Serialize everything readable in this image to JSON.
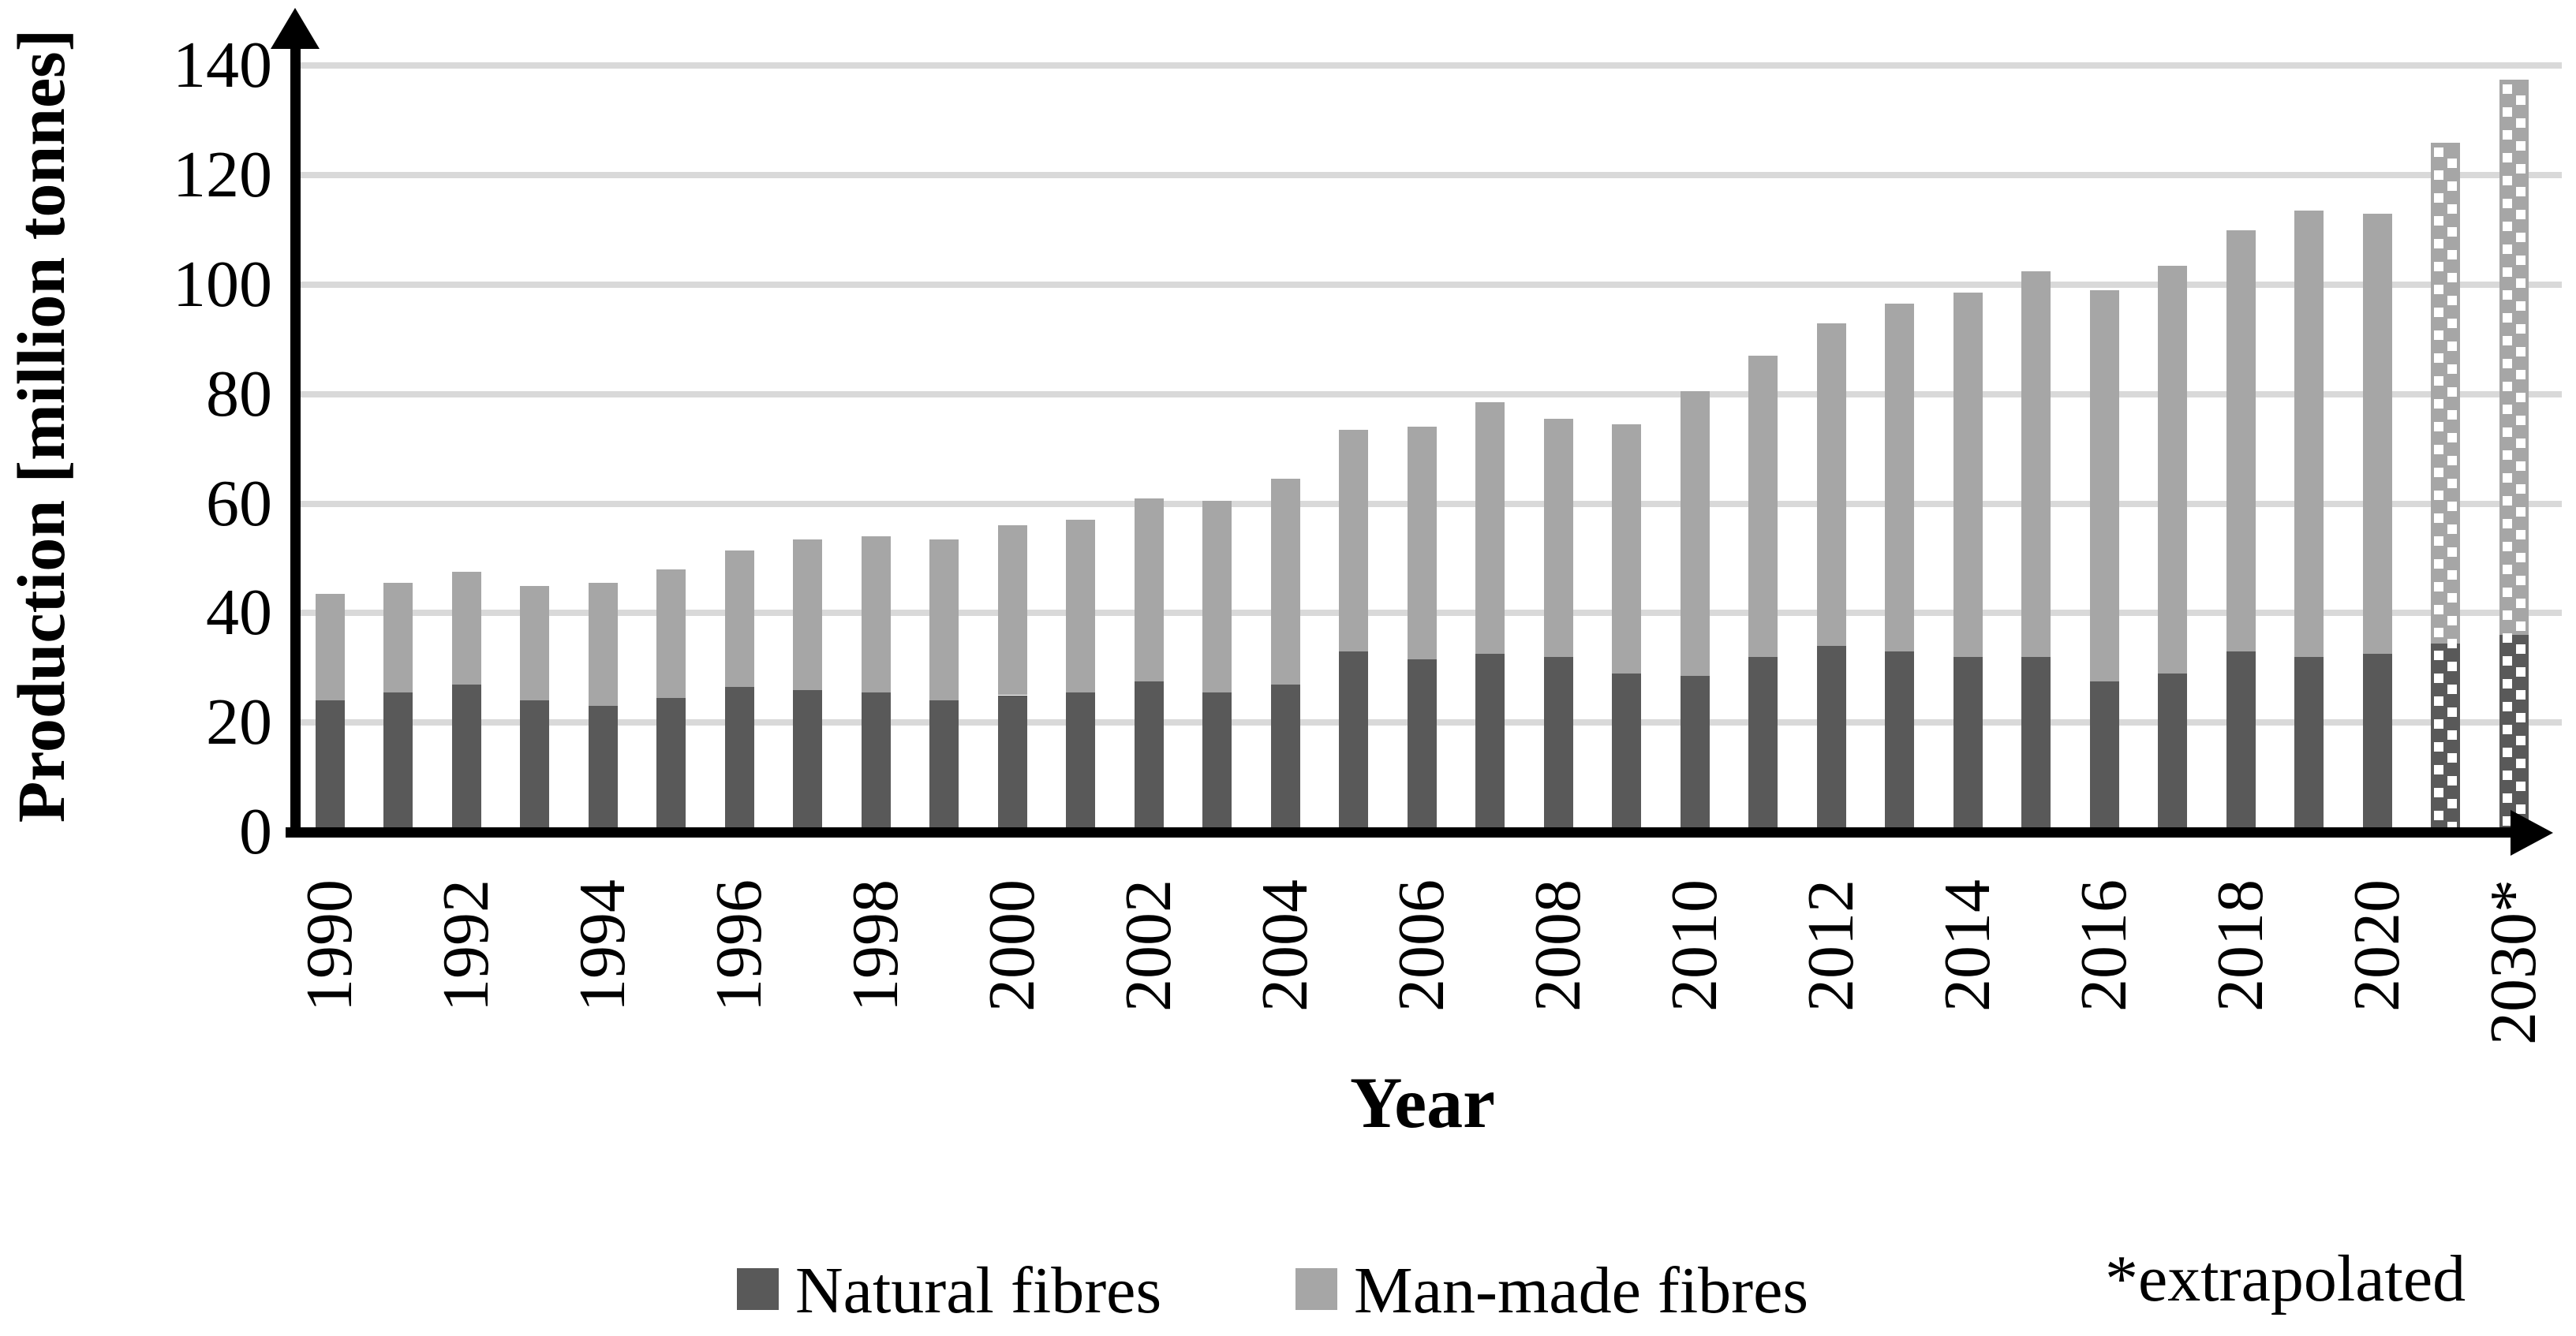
{
  "chart_data": {
    "type": "bar",
    "stacked": true,
    "title": "",
    "xlabel": "Year",
    "ylabel": "Production [million tonnes]",
    "ylim": [
      0,
      140
    ],
    "ytick_interval": 20,
    "yticks": [
      0,
      20,
      40,
      60,
      80,
      100,
      120,
      140
    ],
    "grid": "horizontal",
    "legend_position": "bottom",
    "categories": [
      "1990",
      "1991",
      "1992",
      "1993",
      "1994",
      "1995",
      "1996",
      "1997",
      "1998",
      "1999",
      "2000",
      "2001",
      "2002",
      "2003",
      "2004",
      "2005",
      "2006",
      "2007",
      "2008",
      "2009",
      "2010",
      "2011",
      "2012",
      "2013",
      "2014",
      "2015",
      "2016",
      "2017",
      "2018",
      "2019",
      "2020",
      "2025*",
      "2030*"
    ],
    "x_axis_tick_labels_shown": [
      "1990",
      "1992",
      "1994",
      "1996",
      "1998",
      "2000",
      "2002",
      "2004",
      "2006",
      "2008",
      "2010",
      "2012",
      "2014",
      "2016",
      "2018",
      "2020",
      "2030*"
    ],
    "x_axis_tick_indices_shown": [
      0,
      2,
      4,
      6,
      8,
      10,
      12,
      14,
      16,
      18,
      20,
      22,
      24,
      26,
      28,
      30,
      32
    ],
    "series": [
      {
        "name": "Natural fibres",
        "values": [
          24,
          25.5,
          27,
          24,
          23,
          24.5,
          26.5,
          26,
          25.5,
          24,
          25,
          25.5,
          27.5,
          25.5,
          27,
          33,
          31.5,
          32.5,
          32,
          29,
          28.5,
          32,
          34,
          33,
          32,
          32,
          27.5,
          29,
          33,
          32,
          32.5,
          34.5,
          36
        ]
      },
      {
        "name": "Man-made fibres",
        "values": [
          19.5,
          20,
          20.5,
          21,
          22.5,
          23.5,
          25,
          27.5,
          28.5,
          29.5,
          31,
          31.5,
          33.5,
          35,
          37.5,
          40.5,
          42.5,
          46,
          43.5,
          45.5,
          52,
          55,
          59,
          63.5,
          66.5,
          70.5,
          71.5,
          74.5,
          77,
          81.5,
          80.5,
          91.5,
          101.5
        ]
      }
    ],
    "extrapolated_categories": [
      "2025*",
      "2030*"
    ],
    "note": "*extrapolated"
  },
  "legend": {
    "natural_label": "Natural fibres",
    "manmade_label": "Man-made fibres",
    "note": "*extrapolated"
  },
  "axes": {
    "y_title": "Production [million tonnes]",
    "x_title": "Year"
  },
  "colors": {
    "natural": "#595959",
    "manmade": "#A6A6A6",
    "gridline": "#D9D9D9",
    "axis": "#000000",
    "dot": "#FFFFFF",
    "background": "#FFFFFF"
  }
}
